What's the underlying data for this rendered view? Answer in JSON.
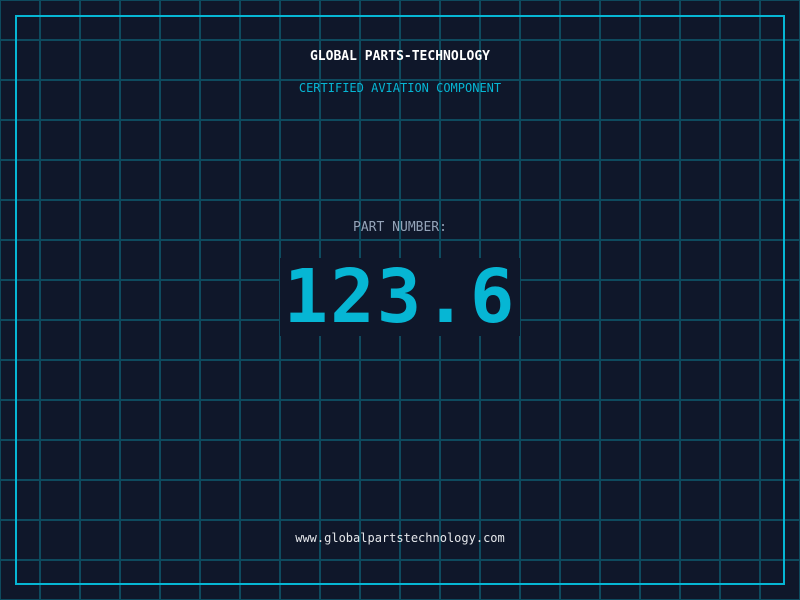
{
  "header": {
    "title": "GLOBAL PARTS-TECHNOLOGY",
    "subtitle": "CERTIFIED AVIATION COMPONENT"
  },
  "part": {
    "label": "PART NUMBER:",
    "value": "123.6"
  },
  "footer": {
    "url": "www.globalpartstechnology.com"
  },
  "colors": {
    "background": "#0f172a",
    "accent": "#06b6d4",
    "grid": "#0e4a5e",
    "label": "#94a3b8"
  }
}
